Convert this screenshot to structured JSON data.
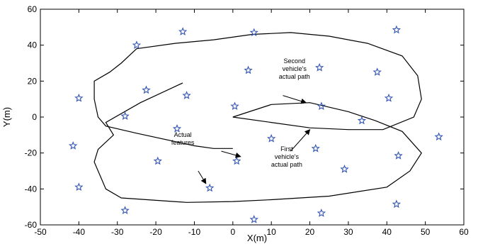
{
  "chart_data": {
    "type": "scatter",
    "title": "",
    "xlabel": "X(m)",
    "ylabel": "Y(m)",
    "xlim": [
      -50,
      60
    ],
    "ylim": [
      -60,
      60
    ],
    "xticks": [
      -50,
      -40,
      -30,
      -20,
      -10,
      0,
      10,
      20,
      30,
      40,
      50,
      60
    ],
    "yticks": [
      -60,
      -40,
      -20,
      0,
      20,
      40,
      60
    ],
    "grid": false,
    "marker_color": "#3355b5",
    "line_color": "#000000",
    "series": [
      {
        "type": "scatter",
        "marker": "star",
        "points": [
          [
            -13,
            47.5
          ],
          [
            5.5,
            47
          ],
          [
            42.5,
            48.5
          ],
          [
            -25,
            40
          ],
          [
            4,
            26
          ],
          [
            22.5,
            27.5
          ],
          [
            37.5,
            25
          ],
          [
            -22.5,
            15
          ],
          [
            -12,
            12
          ],
          [
            40.5,
            10.5
          ],
          [
            -40,
            10.5
          ],
          [
            0.5,
            6
          ],
          [
            23,
            6
          ],
          [
            -28,
            0.5
          ],
          [
            33.5,
            -2
          ],
          [
            -14.5,
            -6.5
          ],
          [
            53.5,
            -11
          ],
          [
            10,
            -12
          ],
          [
            -41.5,
            -16
          ],
          [
            21.5,
            -17.5
          ],
          [
            -19.5,
            -24.5
          ],
          [
            1,
            -24.5
          ],
          [
            43,
            -21.5
          ],
          [
            29,
            -29
          ],
          [
            -40,
            -39
          ],
          [
            -6,
            -39.5
          ],
          [
            -28,
            -52
          ],
          [
            42.5,
            -48.5
          ],
          [
            23,
            -53.5
          ],
          [
            5.5,
            -57
          ]
        ]
      },
      {
        "type": "line",
        "points": [
          [
            -13,
            19
          ],
          [
            -24,
            8
          ],
          [
            -33,
            -3
          ],
          [
            -31,
            -10
          ],
          [
            -35,
            -18
          ],
          [
            -36,
            -25
          ],
          [
            -33,
            -40
          ],
          [
            -29,
            -45
          ],
          [
            -12,
            -47.5
          ],
          [
            0,
            -47
          ],
          [
            10,
            -46
          ],
          [
            25,
            -44
          ],
          [
            40,
            -39
          ],
          [
            46,
            -30
          ],
          [
            49,
            -20
          ],
          [
            44,
            -8
          ],
          [
            37,
            -2
          ],
          [
            30,
            3
          ],
          [
            20,
            8
          ],
          [
            10,
            7
          ],
          [
            0,
            0
          ],
          [
            10,
            -3
          ],
          [
            20,
            -6
          ],
          [
            30,
            -7
          ],
          [
            39,
            -7
          ],
          [
            47,
            0
          ],
          [
            49,
            10
          ],
          [
            48,
            23
          ],
          [
            44,
            34
          ],
          [
            35,
            41
          ],
          [
            25,
            45
          ],
          [
            15,
            47
          ],
          [
            5,
            46
          ],
          [
            -5,
            43
          ],
          [
            -15,
            41
          ],
          [
            -25,
            38
          ],
          [
            -29,
            30
          ],
          [
            -32,
            25
          ],
          [
            -36,
            20
          ],
          [
            -36,
            10
          ],
          [
            -35,
            0
          ],
          [
            -33,
            -5
          ],
          [
            -25,
            -9
          ],
          [
            -10,
            -16
          ],
          [
            -5,
            -17.5
          ],
          [
            0,
            -17.5
          ]
        ]
      }
    ],
    "annotations": [
      {
        "lines": [
          "Second",
          "vehicle's",
          "actual path"
        ],
        "text_at": [
          16,
          30
        ],
        "arrow_from": [
          13,
          12
        ],
        "arrow_to": [
          19,
          8
        ]
      },
      {
        "lines": [
          "Actual",
          "features"
        ],
        "text_at": [
          -13,
          -11
        ],
        "arrow_from": [
          -3,
          -19
        ],
        "arrow_to": [
          2,
          -22
        ],
        "arrow2_from": [
          -9,
          -30
        ],
        "arrow2_to": [
          -7,
          -37
        ]
      },
      {
        "lines": [
          "First",
          "vehicle's",
          "actual path"
        ],
        "text_at": [
          14,
          -19
        ],
        "arrow_from": [
          15,
          -19
        ],
        "arrow_to": [
          20,
          -7
        ]
      }
    ]
  }
}
